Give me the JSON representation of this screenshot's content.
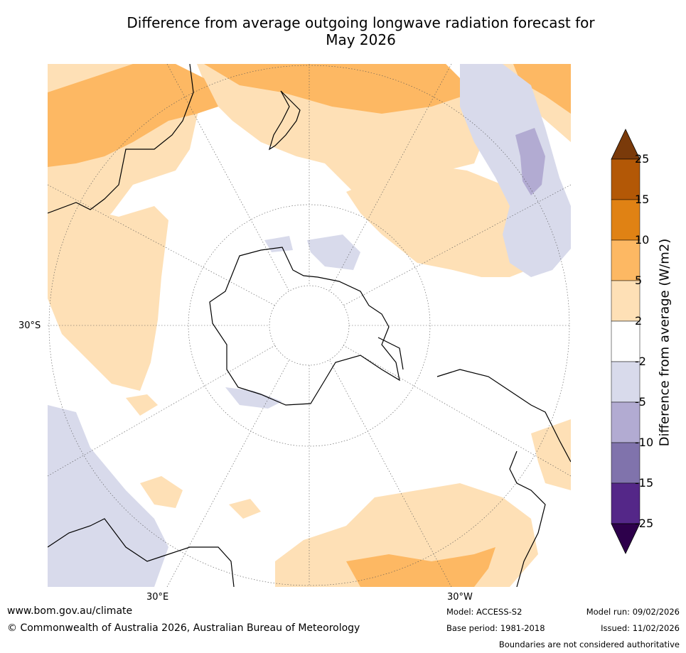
{
  "title": {
    "line1": "Difference from average outgoing longwave radiation forecast for",
    "line2": "May 2026"
  },
  "map": {
    "lat_label": "30°S",
    "lon_label_left": "30°E",
    "lon_label_right": "30°W"
  },
  "colorbar": {
    "title": "Difference from average (W/m2)",
    "ticks": [
      "25",
      "15",
      "10",
      "5",
      "2",
      "-2",
      "-5",
      "-10",
      "-15",
      "-25"
    ],
    "colors": [
      "#7a3a0a",
      "#b35806",
      "#e08214",
      "#fdb863",
      "#fee0b6",
      "#ffffff",
      "#d8daeb",
      "#b2abd2",
      "#8073ac",
      "#542788",
      "#2d004b"
    ]
  },
  "footer": {
    "website": "www.bom.gov.au/climate",
    "copyright": "© Commonwealth of Australia 2026, Australian Bureau of Meteorology",
    "model": "Model: ACCESS-S2",
    "base_period": "Base period: 1981-2018",
    "model_run": "Model run: 09/02/2026",
    "issued": "Issued: 11/02/2026",
    "disclaimer": "Boundaries are not considered authoritative"
  }
}
